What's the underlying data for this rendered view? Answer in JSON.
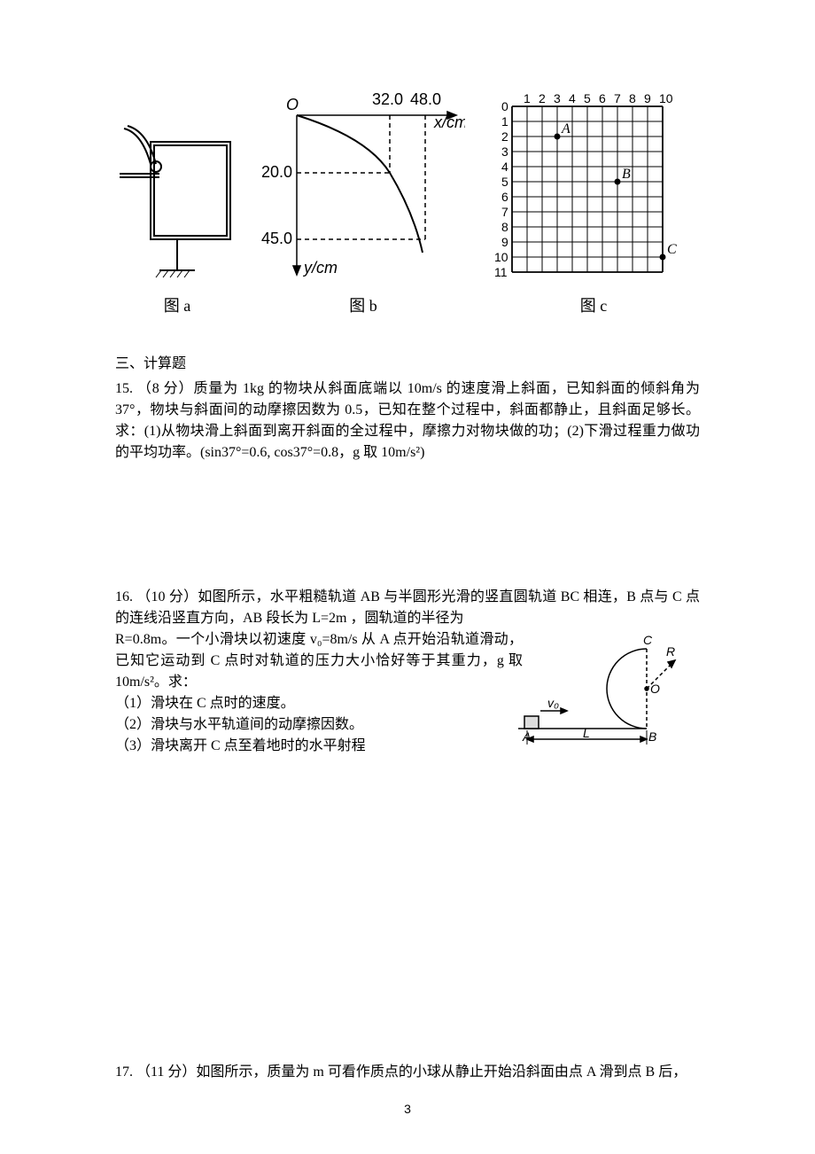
{
  "figures": {
    "a": {
      "caption": "图 a"
    },
    "b": {
      "caption": "图 b",
      "origin_label": "O",
      "x_label": "x/cm",
      "y_label": "y/cm",
      "x_ticks": [
        "32.0",
        "48.0"
      ],
      "y_ticks": [
        "20.0",
        "45.0"
      ]
    },
    "c": {
      "caption": "图 c",
      "x_labels": [
        "1",
        "2",
        "3",
        "4",
        "5",
        "6",
        "7",
        "8",
        "9",
        "10"
      ],
      "y_labels": [
        "0",
        "1",
        "2",
        "3",
        "4",
        "5",
        "6",
        "7",
        "8",
        "9",
        "10",
        "11"
      ],
      "points": [
        {
          "label": "A",
          "col": 3,
          "row": 2
        },
        {
          "label": "B",
          "col": 7,
          "row": 5
        },
        {
          "label": "C",
          "col": 10,
          "row": 10
        }
      ]
    }
  },
  "section_heading": "三、计算题",
  "q15": {
    "number": "15.",
    "points": "（8 分）",
    "text_full": "质量为 1kg 的物块从斜面底端以 10m/s 的速度滑上斜面，已知斜面的倾斜角为 37°，物块与斜面间的动摩擦因数为 0.5，已知在整个过程中，斜面都静止，且斜面足够长。求：(1)从物块滑上斜面到离开斜面的全过程中，摩擦力对物块做的功；(2)下滑过程重力做功的平均功率。(sin37°=0.6, cos37°=0.8，g 取 10m/s²)"
  },
  "q16": {
    "number": "16.",
    "points": "（10 分）",
    "intro": "如图所示，水平粗糙轨道 AB 与半圆形光滑的竖直圆轨道 BC 相连，B 点与 C 点的连线沿竖直方向，AB 段长为 L=2m ，圆轨道的半径为",
    "line2": "R=0.8m。一个小滑块以初速度 v₀=8m/s 从 A 点开始沿轨道滑动，已知它运动到 C 点时对轨道的压力大小恰好等于其重力，g 取 10m/s²。求：",
    "sub1": "（1）滑块在 C 点时的速度。",
    "sub2": "（2）滑块与水平轨道间的动摩擦因数。",
    "sub3": "（3）滑块离开 C 点至着地时的水平射程",
    "figure": {
      "labels": {
        "A": "A",
        "B": "B",
        "C": "C",
        "O": "O",
        "R": "R",
        "L": "L",
        "v0": "v₀"
      }
    }
  },
  "q17": {
    "number": "17.",
    "points": "（11 分）",
    "text": "如图所示，质量为 m 可看作质点的小球从静止开始沿斜面由点 A 滑到点 B 后，"
  },
  "page_number": "3",
  "colors": {
    "stroke": "#000000",
    "bg": "#ffffff"
  }
}
